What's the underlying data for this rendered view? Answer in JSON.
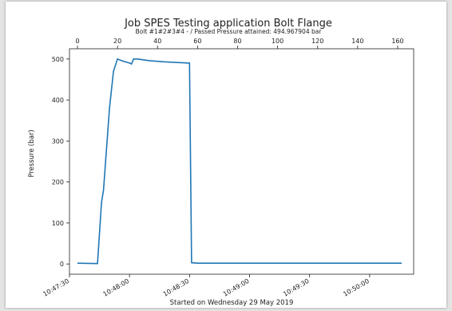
{
  "chart_data": {
    "type": "line",
    "title": "Job SPES Testing application Bolt Flange",
    "subtitle": "Bolt #1#2#3#4 - / Passed Pressure attained: 494.967904 bar",
    "xlabel": "Started on Wednesday 29 May 2019",
    "ylabel": "Pressure (bar)",
    "ylim": [
      -25,
      525
    ],
    "xlim": [
      -4,
      168
    ],
    "yticks": [
      0,
      100,
      200,
      300,
      400,
      500
    ],
    "top_xticks": [
      0,
      20,
      40,
      60,
      80,
      100,
      120,
      140,
      160
    ],
    "bottom_xticks": [
      {
        "label": "10:47:30",
        "x": -4
      },
      {
        "label": "10:48:00",
        "x": 26
      },
      {
        "label": "10:48:30",
        "x": 56
      },
      {
        "label": "10:49:00",
        "x": 86
      },
      {
        "label": "10:49:30",
        "x": 116
      },
      {
        "label": "10:50:00",
        "x": 146
      }
    ],
    "line_color": "#1f77b4",
    "series": [
      {
        "x": [
          0,
          10,
          12,
          13,
          16,
          18,
          20,
          22,
          26,
          27,
          28,
          30,
          36,
          44,
          52,
          56,
          57,
          60,
          80,
          120,
          140,
          162
        ],
        "y": [
          2,
          1,
          150,
          180,
          380,
          470,
          500,
          496,
          490,
          488,
          500,
          500,
          496,
          493,
          491,
          490,
          3,
          2,
          2,
          2,
          2,
          2
        ]
      }
    ]
  }
}
